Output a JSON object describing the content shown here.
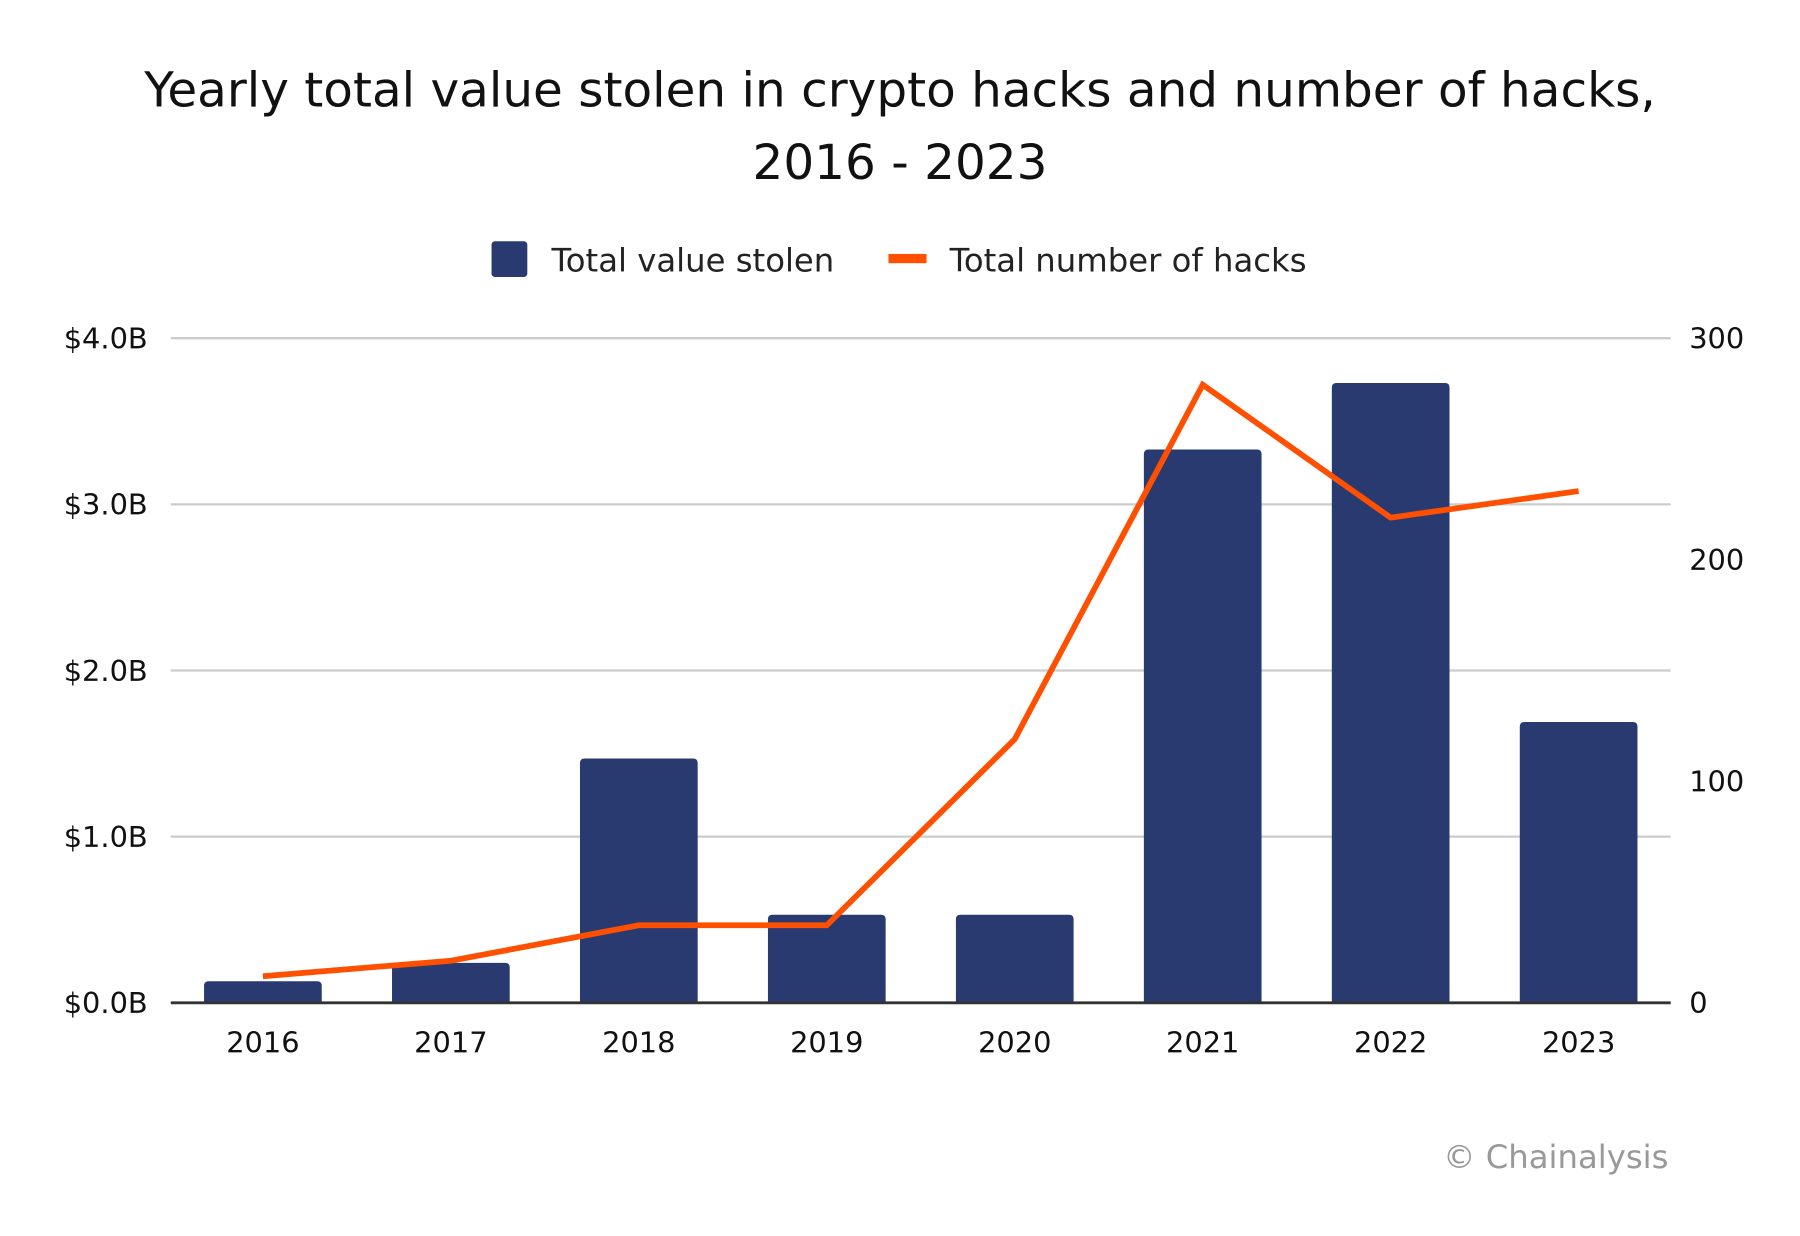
{
  "chart_data": {
    "type": "bar+line",
    "title_line1": "Yearly total value stolen in crypto hacks and number of hacks,",
    "title_line2": "2016 - 2023",
    "categories": [
      "2016",
      "2017",
      "2018",
      "2019",
      "2020",
      "2021",
      "2022",
      "2023"
    ],
    "series": [
      {
        "name": "Total value stolen",
        "type": "bar",
        "axis": "left",
        "unit": "USD billions",
        "color": "#283a70",
        "values": [
          0.13,
          0.24,
          1.47,
          0.53,
          0.53,
          3.33,
          3.73,
          1.69
        ]
      },
      {
        "name": "Total number of hacks",
        "type": "line",
        "axis": "right",
        "color": "#fe5000",
        "values": [
          12,
          19,
          35,
          35,
          119,
          279,
          219,
          231
        ]
      }
    ],
    "left_axis": {
      "ylim": [
        0,
        4
      ],
      "ticks": [
        "$0.0B",
        "$1.0B",
        "$2.0B",
        "$3.0B",
        "$4.0B"
      ]
    },
    "right_axis": {
      "ylim": [
        0,
        300
      ],
      "ticks": [
        "0",
        "100",
        "200",
        "300"
      ]
    },
    "grid": true,
    "legend_position": "top",
    "credit": "© Chainalysis"
  }
}
